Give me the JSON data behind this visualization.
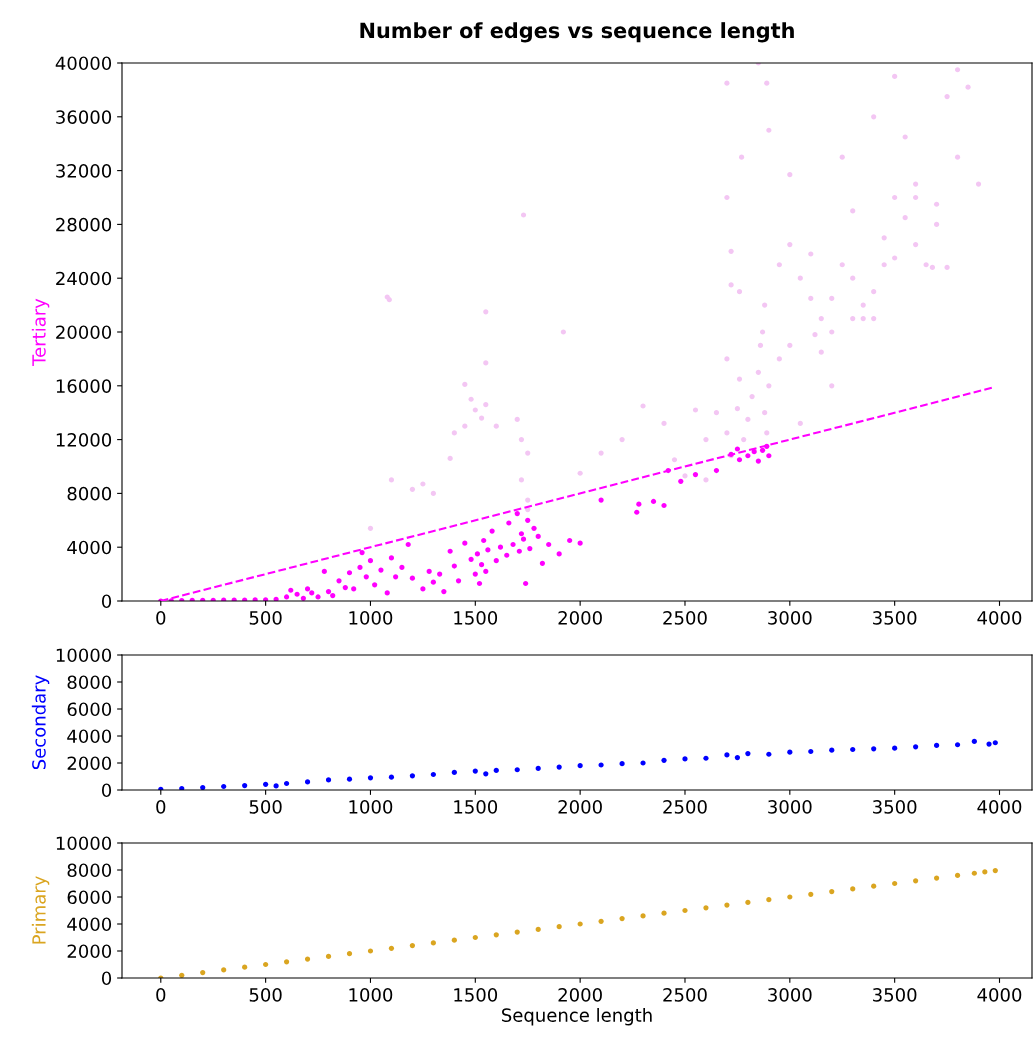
{
  "chart_data": [
    {
      "type": "scatter",
      "title": "Number of edges vs sequence length",
      "ylabel": "Tertiary",
      "xlim": [
        -185,
        4155
      ],
      "ylim": [
        0,
        40000
      ],
      "xticks": [
        0,
        500,
        1000,
        1500,
        2000,
        2500,
        3000,
        3500,
        4000
      ],
      "yticks": [
        0,
        4000,
        8000,
        12000,
        16000,
        20000,
        24000,
        28000,
        32000,
        36000,
        40000
      ],
      "marker": "circle",
      "grid": false,
      "series": [
        {
          "color": "#f3c6f3",
          "x": [
            1080,
            1090,
            1550,
            1450,
            1480,
            1500,
            1530,
            1400,
            1380,
            1450,
            1550,
            1600,
            1700,
            1720,
            1750,
            1720,
            1750,
            1730,
            1920,
            1100,
            1200,
            1000,
            1250,
            1550,
            1300,
            1750,
            2000,
            2100,
            2200,
            2300,
            2400,
            2450,
            2500,
            2550,
            2600,
            2700,
            2700,
            2720,
            2750,
            2760,
            2780,
            2800,
            2820,
            2850,
            2860,
            2870,
            2880,
            2880,
            2890,
            2900,
            2700,
            2770,
            2700,
            2720,
            2760,
            2720,
            2890,
            2850,
            2900,
            3000,
            2950,
            3000,
            3050,
            3000,
            3100,
            3150,
            3200,
            3250,
            3300,
            3300,
            3350,
            3350,
            3400,
            3250,
            3300,
            3200,
            3150,
            3450,
            3500,
            3550,
            3500,
            3600,
            3600,
            3650,
            3700,
            3700,
            3750,
            3800,
            3750,
            3800,
            3850,
            3900,
            3550,
            3600,
            3680,
            3500,
            3400,
            3100,
            2600,
            2650,
            3050,
            2950,
            3120,
            3200,
            3400,
            3450
          ],
          "values": [
            22600,
            22400,
            21500,
            16100,
            15000,
            14200,
            13600,
            12500,
            10600,
            13000,
            14600,
            13000,
            13500,
            12000,
            11000,
            9000,
            7500,
            28700,
            20000,
            9000,
            8300,
            5400,
            8700,
            17700,
            8000,
            6800,
            9500,
            11000,
            12000,
            14500,
            13200,
            10500,
            9300,
            14200,
            9000,
            18000,
            12500,
            10800,
            14300,
            16500,
            12000,
            13500,
            15200,
            17000,
            19000,
            20000,
            14000,
            22000,
            12500,
            16000,
            38500,
            33000,
            30000,
            26000,
            23000,
            23500,
            38500,
            40000,
            35000,
            31700,
            25000,
            26500,
            24000,
            19000,
            22500,
            21000,
            22500,
            25000,
            21000,
            24000,
            22000,
            21000,
            23000,
            33000,
            29000,
            20000,
            18500,
            27000,
            30000,
            28500,
            25500,
            31000,
            26500,
            25000,
            28000,
            29500,
            24800,
            33000,
            37500,
            39500,
            38200,
            31000,
            34500,
            30000,
            24800,
            39000,
            36000,
            25800,
            12000,
            14000,
            13200,
            18000,
            19800,
            16000,
            21000,
            25000
          ]
        },
        {
          "color": "#ff00ff",
          "x": [
            0,
            50,
            100,
            150,
            200,
            250,
            300,
            350,
            400,
            450,
            500,
            550,
            600,
            620,
            650,
            680,
            700,
            720,
            750,
            780,
            800,
            820,
            850,
            880,
            900,
            920,
            950,
            960,
            980,
            1000,
            1020,
            1050,
            1080,
            1100,
            1120,
            1150,
            1180,
            1200,
            1250,
            1280,
            1300,
            1330,
            1350,
            1380,
            1400,
            1420,
            1450,
            1480,
            1500,
            1510,
            1520,
            1530,
            1540,
            1550,
            1560,
            1580,
            1600,
            1620,
            1650,
            1660,
            1680,
            1700,
            1710,
            1720,
            1730,
            1740,
            1750,
            1760,
            1780,
            1800,
            1820,
            1850,
            1900,
            1950,
            2000,
            2100,
            2270,
            2280,
            2350,
            2400,
            2420,
            2480,
            2550,
            2650,
            2720,
            2750,
            2760,
            2800,
            2830,
            2850,
            2870,
            2900,
            2890
          ],
          "values": [
            0,
            20,
            30,
            40,
            50,
            50,
            60,
            60,
            70,
            80,
            90,
            120,
            300,
            800,
            500,
            200,
            900,
            600,
            300,
            2200,
            700,
            400,
            1500,
            1000,
            2100,
            900,
            2500,
            3600,
            1800,
            3000,
            1200,
            2300,
            600,
            3200,
            1800,
            2500,
            4200,
            1700,
            900,
            2200,
            1400,
            2000,
            700,
            3700,
            2600,
            1500,
            4300,
            3100,
            2000,
            3500,
            1300,
            2700,
            4500,
            2200,
            3800,
            5200,
            3000,
            4000,
            3400,
            5800,
            4200,
            6500,
            3700,
            5000,
            4600,
            1300,
            6000,
            3900,
            5400,
            4800,
            2800,
            4200,
            3500,
            4500,
            4300,
            7500,
            6600,
            7200,
            7400,
            7100,
            9700,
            8900,
            9400,
            9700,
            10900,
            11300,
            10500,
            10800,
            11100,
            10400,
            11200,
            10800,
            11500
          ]
        },
        {
          "type": "line",
          "line_style": "dashed",
          "marker": "none",
          "color": "#ff00ff",
          "x": [
            0,
            3970
          ],
          "values": [
            0,
            15880
          ]
        }
      ]
    },
    {
      "type": "scatter",
      "ylabel": "Secondary",
      "xlim": [
        -185,
        4155
      ],
      "ylim": [
        0,
        10000
      ],
      "xticks": [
        0,
        500,
        1000,
        1500,
        2000,
        2500,
        3000,
        3500,
        4000
      ],
      "yticks": [
        0,
        2000,
        4000,
        6000,
        8000,
        10000
      ],
      "marker": "circle",
      "grid": false,
      "series": [
        {
          "color": "#0000ff",
          "x": [
            0,
            100,
            200,
            300,
            400,
            500,
            550,
            600,
            700,
            800,
            900,
            1000,
            1100,
            1200,
            1300,
            1400,
            1500,
            1550,
            1600,
            1700,
            1800,
            1900,
            2000,
            2100,
            2200,
            2300,
            2400,
            2500,
            2600,
            2700,
            2750,
            2800,
            2900,
            3000,
            3100,
            3200,
            3300,
            3400,
            3500,
            3600,
            3700,
            3800,
            3880,
            3950,
            3980
          ],
          "values": [
            50,
            110,
            180,
            260,
            330,
            420,
            300,
            480,
            600,
            750,
            800,
            900,
            950,
            1050,
            1150,
            1300,
            1400,
            1200,
            1450,
            1500,
            1600,
            1700,
            1800,
            1850,
            1950,
            2000,
            2200,
            2300,
            2350,
            2600,
            2400,
            2700,
            2650,
            2800,
            2850,
            2950,
            3000,
            3050,
            3100,
            3200,
            3300,
            3350,
            3600,
            3400,
            3500
          ]
        }
      ]
    },
    {
      "type": "scatter",
      "ylabel": "Primary",
      "xlabel": "Sequence length",
      "xlim": [
        -185,
        4155
      ],
      "ylim": [
        0,
        10000
      ],
      "xticks": [
        0,
        500,
        1000,
        1500,
        2000,
        2500,
        3000,
        3500,
        4000
      ],
      "yticks": [
        0,
        2000,
        4000,
        6000,
        8000,
        10000
      ],
      "marker": "circle",
      "grid": false,
      "series": [
        {
          "color": "#daa520",
          "x": [
            0,
            100,
            200,
            300,
            400,
            500,
            600,
            700,
            800,
            900,
            1000,
            1100,
            1200,
            1300,
            1400,
            1500,
            1600,
            1700,
            1800,
            1900,
            2000,
            2100,
            2200,
            2300,
            2400,
            2500,
            2600,
            2700,
            2800,
            2900,
            3000,
            3100,
            3200,
            3300,
            3400,
            3500,
            3600,
            3700,
            3800,
            3880,
            3930,
            3980
          ],
          "values": [
            0,
            200,
            400,
            600,
            800,
            1000,
            1200,
            1400,
            1600,
            1800,
            2000,
            2200,
            2400,
            2600,
            2800,
            3000,
            3200,
            3400,
            3600,
            3800,
            4000,
            4200,
            4400,
            4600,
            4800,
            5000,
            5200,
            5400,
            5600,
            5800,
            6000,
            6200,
            6400,
            6600,
            6800,
            7000,
            7200,
            7400,
            7600,
            7760,
            7860,
            7960
          ]
        }
      ]
    }
  ]
}
